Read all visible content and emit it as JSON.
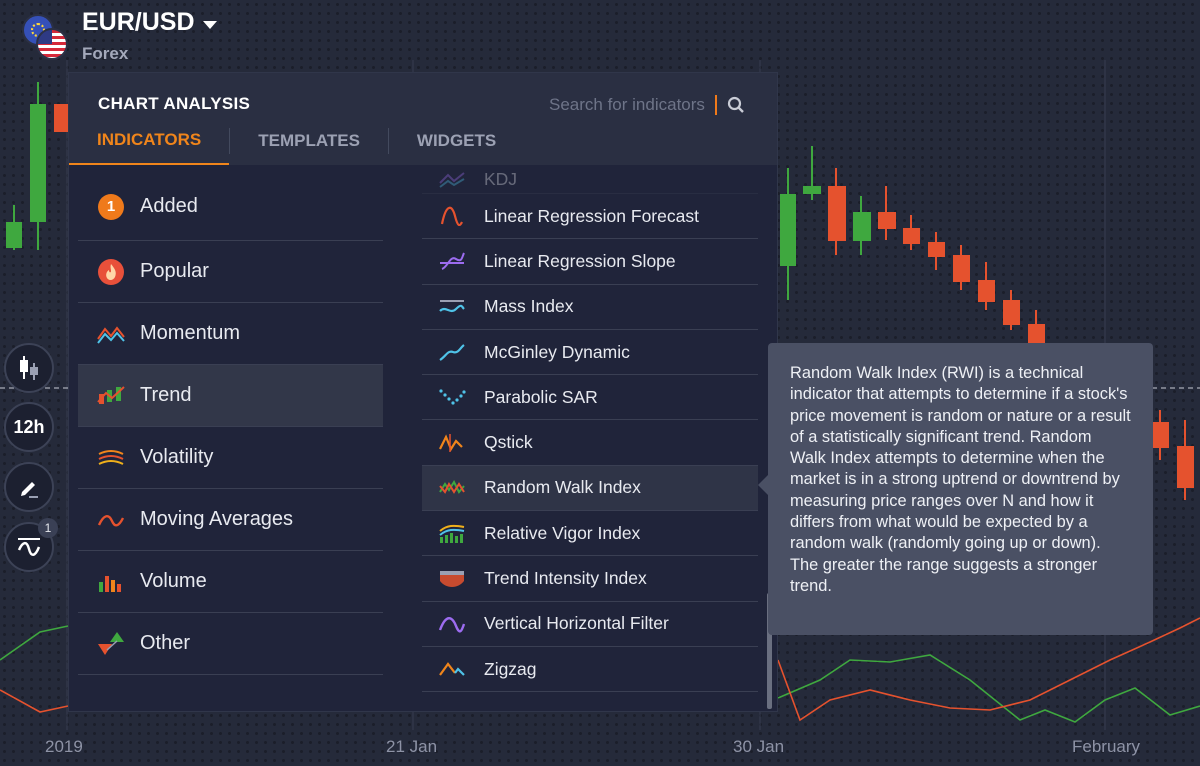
{
  "asset": {
    "name": "EUR/USD",
    "type": "Forex"
  },
  "toolbar": {
    "timeframe": "12h",
    "indicator_count": "1",
    "top_badge": "1"
  },
  "xaxis": {
    "labels": [
      "2019",
      "21 Jan",
      "30 Jan",
      "February"
    ]
  },
  "panel": {
    "title": "CHART ANALYSIS",
    "search_placeholder": "Search for indicators",
    "tabs": [
      {
        "label": "INDICATORS",
        "active": true
      },
      {
        "label": "TEMPLATES",
        "active": false
      },
      {
        "label": "WIDGETS",
        "active": false
      }
    ],
    "categories": [
      {
        "label": "Added",
        "badge": "1",
        "icon": "count-badge"
      },
      {
        "label": "Popular",
        "icon": "fire-icon"
      },
      {
        "label": "Momentum",
        "icon": "momentum-icon"
      },
      {
        "label": "Trend",
        "icon": "trend-icon",
        "active": true
      },
      {
        "label": "Volatility",
        "icon": "volatility-icon"
      },
      {
        "label": "Moving Averages",
        "icon": "moving-averages-icon"
      },
      {
        "label": "Volume",
        "icon": "volume-icon"
      },
      {
        "label": "Other",
        "icon": "other-icon"
      }
    ],
    "indicators": [
      {
        "label": "KDJ",
        "icon": "kdj-icon"
      },
      {
        "label": "Linear Regression Forecast",
        "icon": "linear-regression-forecast-icon"
      },
      {
        "label": "Linear Regression Slope",
        "icon": "linear-regression-slope-icon"
      },
      {
        "label": "Mass Index",
        "icon": "mass-index-icon"
      },
      {
        "label": "McGinley Dynamic",
        "icon": "mcginley-dynamic-icon"
      },
      {
        "label": "Parabolic SAR",
        "icon": "parabolic-sar-icon"
      },
      {
        "label": "Qstick",
        "icon": "qstick-icon"
      },
      {
        "label": "Random Walk Index",
        "icon": "random-walk-index-icon",
        "hover": true
      },
      {
        "label": "Relative Vigor Index",
        "icon": "relative-vigor-index-icon"
      },
      {
        "label": "Trend Intensity Index",
        "icon": "trend-intensity-index-icon"
      },
      {
        "label": "Vertical Horizontal Filter",
        "icon": "vertical-horizontal-filter-icon"
      },
      {
        "label": "Zigzag",
        "icon": "zigzag-icon"
      }
    ]
  },
  "tooltip": {
    "text": "Random Walk Index (RWI) is a technical indicator that attempts to determine if a stock's price movement is random or nature or a result of a statistically significant trend. Random Walk Index attempts to determine when the market is in a strong uptrend or downtrend by measuring price ranges over N and how it differs from what would be expected by a random walk (randomly going up or down).  The greater the range suggests a stronger trend."
  },
  "colors": {
    "accent": "#f0851b",
    "bull": "#3fa83f",
    "bear": "#e5522e",
    "background": "#252a3a"
  }
}
